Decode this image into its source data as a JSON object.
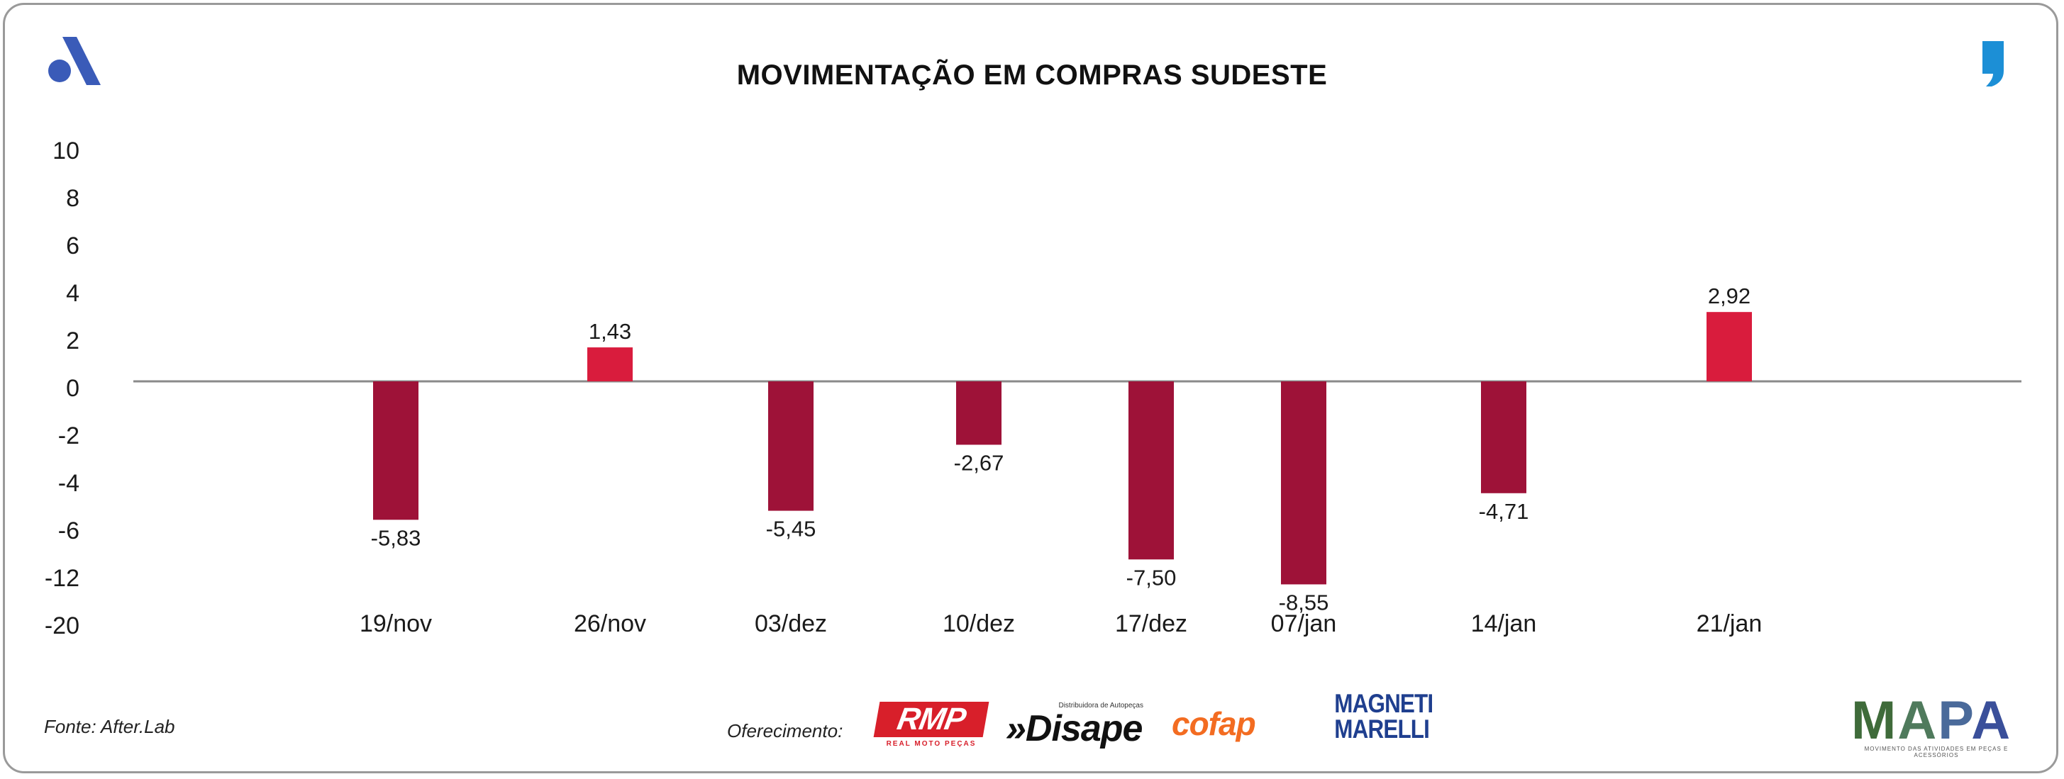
{
  "header": {
    "title": "MOVIMENTAÇÃO EM COMPRAS SUDESTE"
  },
  "chart_data": {
    "type": "bar",
    "title": "MOVIMENTAÇÃO EM COMPRAS SUDESTE",
    "xlabel": "",
    "ylabel": "",
    "categories": [
      "19/nov",
      "26/nov",
      "03/dez",
      "10/dez",
      "17/dez",
      "07/jan",
      "14/jan",
      "21/jan"
    ],
    "values": [
      -5.83,
      1.43,
      -5.45,
      -2.67,
      -7.5,
      -8.55,
      -4.71,
      2.92
    ],
    "value_labels": [
      "-5,83",
      "1,43",
      "-5,45",
      "-2,67",
      "-7,50",
      "-8,55",
      "-4,71",
      "2,92"
    ],
    "y_tick_labels": [
      "10",
      "8",
      "6",
      "4",
      "2",
      "0",
      "-2",
      "-4",
      "-6",
      "-12",
      "-20"
    ],
    "grid": false,
    "legend": "none",
    "colors": {
      "negative": "#9e1238",
      "positive": "#d91c3d",
      "axis": "#8a8a8a",
      "text": "#1a1a1a"
    }
  },
  "footer": {
    "source": "Fonte: After.Lab",
    "sponsor_label": "Oferecimento:",
    "sponsors": {
      "rmp": {
        "name": "RMP",
        "tagline": "REAL MOTO PEÇAS"
      },
      "disape": {
        "name": "»Disape",
        "tagline": "Distribuidora de Autopeças"
      },
      "cofap": {
        "name": "cofap"
      },
      "magneti": {
        "line1": "MAGNETI",
        "line2": "MARELLI"
      },
      "mapa": {
        "name": "MAPA",
        "tagline": "MOVIMENTO DAS ATIVIDADES EM PEÇAS E ACESSÓRIOS"
      }
    }
  },
  "brand": {
    "left_logo_color": "#3a5bb8",
    "right_logo_color": "#1c8fd6"
  }
}
